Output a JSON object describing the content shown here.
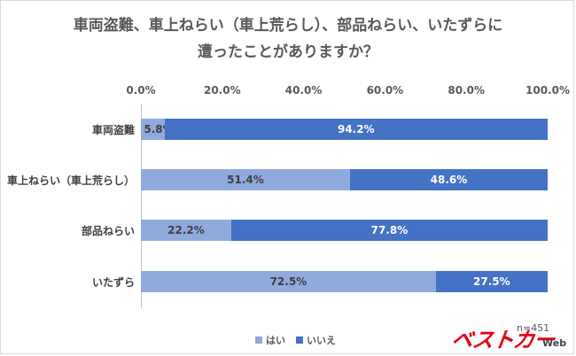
{
  "title_line1": "車両盗難、車上ねらい（車上荒らし）、部品ねらい、いたずらに",
  "title_line2": "遭ったことがありますか？",
  "note": "n=451",
  "logo": {
    "text": "ベストカー",
    "suffix": "Web"
  },
  "colors": {
    "yes": "#8faadc",
    "no": "#4472c4"
  },
  "chart_data": {
    "type": "bar",
    "orientation": "horizontal",
    "stacked": "percent",
    "categories": [
      "車両盗難",
      "車上ねらい（車上荒らし）",
      "部品ねらい",
      "いたずら"
    ],
    "series": [
      {
        "name": "はい",
        "values": [
          5.8,
          51.4,
          22.2,
          72.5
        ],
        "labels": [
          "5.8%",
          "51.4%",
          "22.2%",
          "72.5%"
        ]
      },
      {
        "name": "いいえ",
        "values": [
          94.2,
          48.6,
          77.8,
          27.5
        ],
        "labels": [
          "94.2%",
          "48.6%",
          "77.8%",
          "27.5%"
        ]
      }
    ],
    "xticks": [
      "0.0%",
      "20.0%",
      "40.0%",
      "60.0%",
      "80.0%",
      "100.0%"
    ],
    "xlim": [
      0,
      100
    ],
    "grid": false,
    "legend": "bottom"
  }
}
